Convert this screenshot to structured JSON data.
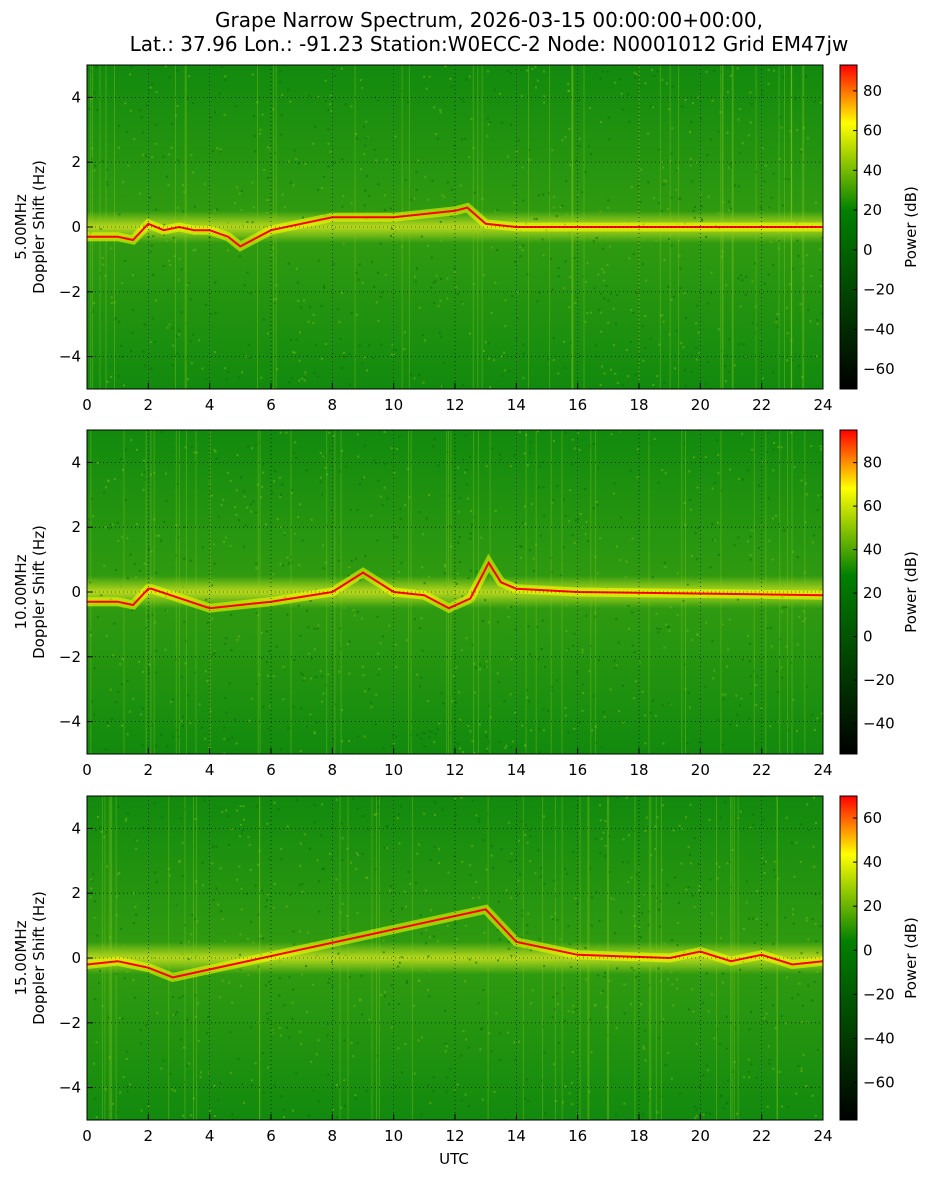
{
  "figure": {
    "title_line1": "Grape Narrow Spectrum, 2026-03-15 00:00:00+00:00,",
    "title_line2": "Lat.: 37.96 Lon.: -91.23 Station:W0ECC-2 Node: N0001012 Grid EM47jw",
    "xlabel": "UTC",
    "colorbar_label": "Power (dB)",
    "colors": {
      "low": "#000000",
      "mid": "#008000",
      "high_yellow": "#ffff00",
      "max": "#ff0000"
    }
  },
  "chart_data": [
    {
      "type": "heatmap",
      "frequency_label": "5.00MHz",
      "ylabel": "Doppler Shift (Hz)",
      "xlim": [
        0,
        24
      ],
      "ylim": [
        -5,
        5
      ],
      "xticks": [
        "0",
        "2",
        "4",
        "6",
        "8",
        "10",
        "12",
        "14",
        "16",
        "18",
        "20",
        "22",
        "24"
      ],
      "yticks": [
        "4",
        "2",
        "0",
        "−2",
        "−4"
      ],
      "grid": true,
      "colorbar": {
        "label": "Power (dB)",
        "range": [
          -70,
          93
        ],
        "ticks": [
          "80",
          "60",
          "40",
          "20",
          "0",
          "−20",
          "−40",
          "−60"
        ]
      },
      "carrier_trace": {
        "utc": [
          0,
          1,
          1.5,
          2,
          2.5,
          3,
          3.5,
          4,
          4.6,
          5,
          6,
          8,
          10,
          12,
          12.4,
          13,
          14,
          16,
          24
        ],
        "doppler_hz": [
          -0.3,
          -0.3,
          -0.4,
          0.1,
          -0.1,
          0,
          -0.1,
          -0.1,
          -0.3,
          -0.6,
          -0.1,
          0.3,
          0.3,
          0.5,
          0.6,
          0.1,
          0,
          0,
          0
        ]
      }
    },
    {
      "type": "heatmap",
      "frequency_label": "10.00MHz",
      "ylabel": "Doppler Shift (Hz)",
      "xlim": [
        0,
        24
      ],
      "ylim": [
        -5,
        5
      ],
      "xticks": [
        "0",
        "2",
        "4",
        "6",
        "8",
        "10",
        "12",
        "14",
        "16",
        "18",
        "20",
        "22",
        "24"
      ],
      "yticks": [
        "4",
        "2",
        "0",
        "−2",
        "−4"
      ],
      "grid": true,
      "colorbar": {
        "label": "Power (dB)",
        "range": [
          -54,
          95
        ],
        "ticks": [
          "80",
          "60",
          "40",
          "20",
          "0",
          "−20",
          "−40"
        ]
      },
      "carrier_trace": {
        "utc": [
          0,
          1,
          1.5,
          2,
          2.1,
          4,
          6,
          8,
          9,
          10,
          11,
          11.8,
          12.5,
          13.1,
          13.5,
          14,
          16,
          24
        ],
        "doppler_hz": [
          -0.3,
          -0.3,
          -0.4,
          0.1,
          0.1,
          -0.5,
          -0.3,
          0,
          0.6,
          0,
          -0.1,
          -0.5,
          -0.2,
          0.9,
          0.3,
          0.1,
          0,
          -0.1
        ]
      }
    },
    {
      "type": "heatmap",
      "frequency_label": "15.00MHz",
      "ylabel": "Doppler Shift (Hz)",
      "xlim": [
        0,
        24
      ],
      "ylim": [
        -5,
        5
      ],
      "xticks": [
        "0",
        "2",
        "4",
        "6",
        "8",
        "10",
        "12",
        "14",
        "16",
        "18",
        "20",
        "22",
        "24"
      ],
      "yticks": [
        "4",
        "2",
        "0",
        "−2",
        "−4"
      ],
      "grid": true,
      "colorbar": {
        "label": "Power (dB)",
        "range": [
          -77,
          70
        ],
        "ticks": [
          "60",
          "40",
          "20",
          "0",
          "−20",
          "−40",
          "−60"
        ]
      },
      "carrier_trace": {
        "utc": [
          0,
          1,
          2,
          2.8,
          13,
          14,
          16,
          19,
          20,
          21,
          22,
          23,
          24
        ],
        "doppler_hz": [
          -0.2,
          -0.1,
          -0.3,
          -0.6,
          1.5,
          0.5,
          0.1,
          0,
          0.2,
          -0.1,
          0.1,
          -0.2,
          -0.1
        ]
      }
    }
  ]
}
